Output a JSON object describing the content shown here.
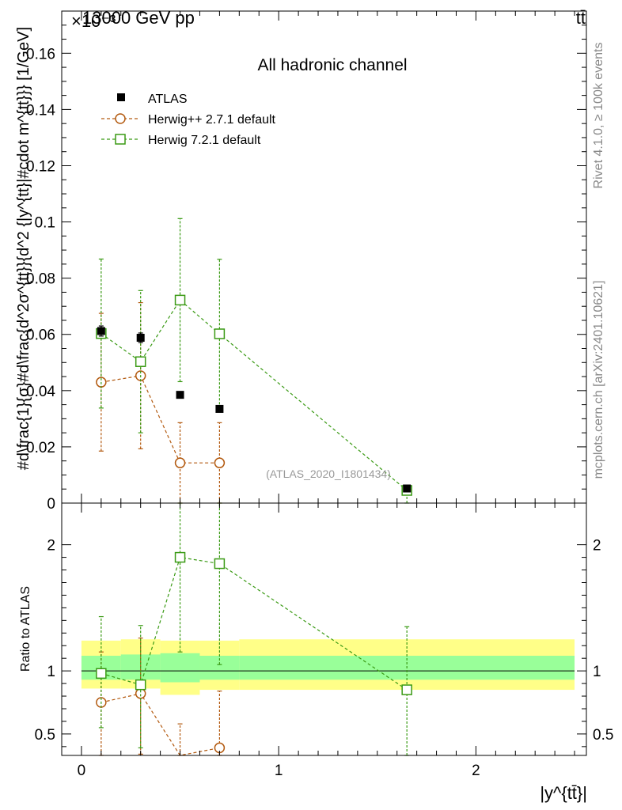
{
  "header": {
    "energy": "13000 GeV pp",
    "process": "tt̄",
    "exponent": "×10⁻³"
  },
  "side_labels": {
    "rivet": "Rivet 4.1.0, ≥ 100k events",
    "source": "mcplots.cern.ch [arXiv:2401.10621]"
  },
  "colors": {
    "herwig2": "#b35a10",
    "herwig7": "#3a9a14",
    "band_outer": "#ffff88",
    "band_inner": "#99ff99"
  },
  "chart_data": [
    {
      "type": "scatter",
      "title": "All hadronic channel",
      "watermark": "(ATLAS_2020_I1801434)",
      "ylabel": "#d\\frac{1}{σ}#d\\frac{d^2σ^{tt}}{d^2 {|y^{tt}|#cdot m^{tt}}} [1/GeV]",
      "xlim": [
        -0.1,
        2.56
      ],
      "ylim": [
        0,
        0.175
      ],
      "y_tick_labels": [
        "0",
        "0.02",
        "0.04",
        "0.06",
        "0.08",
        "0.1",
        "0.12",
        "0.14",
        "0.16"
      ],
      "legend_position": "top-left",
      "series": [
        {
          "name": "ATLAS",
          "marker": "filled-square",
          "x": [
            0.1,
            0.3,
            0.5,
            0.7,
            1.65
          ],
          "y": [
            0.0612,
            0.0588,
            0.0385,
            0.0335,
            0.0052
          ],
          "yerr": [
            0.0018,
            0.0017,
            0.0011,
            0.001,
            0.0003
          ]
        },
        {
          "name": "Herwig++ 2.7.1 default",
          "marker": "open-circle",
          "x": [
            0.1,
            0.3,
            0.5,
            0.7
          ],
          "y": [
            0.043,
            0.0453,
            0.0143,
            0.0143
          ],
          "err_lo": [
            0.0245,
            0.026,
            0.0143,
            0.0143
          ],
          "err_hi": [
            0.0245,
            0.026,
            0.0143,
            0.0143
          ]
        },
        {
          "name": "Herwig 7.2.1 default",
          "marker": "open-square",
          "x": [
            0.1,
            0.3,
            0.5,
            0.7,
            1.65
          ],
          "y": [
            0.0603,
            0.0503,
            0.0722,
            0.0602,
            0.0045
          ],
          "err_lo": [
            0.0265,
            0.0253,
            0.029,
            0.0265,
            0.0045
          ],
          "err_hi": [
            0.0265,
            0.0253,
            0.029,
            0.0265,
            0.0015
          ]
        }
      ]
    },
    {
      "type": "scatter",
      "ylabel": "Ratio to ATLAS",
      "xlabel": "|y^{tt̄}|",
      "xlim": [
        -0.1,
        2.56
      ],
      "ylim": [
        0.33,
        2.33
      ],
      "y_ticks": [
        0.5,
        1,
        2
      ],
      "y_tick_labels": [
        "0.5",
        "1",
        "2"
      ],
      "x_ticks": [
        0,
        1,
        2
      ],
      "x_tick_labels": [
        "0",
        "1",
        "2"
      ],
      "bands": {
        "edges": [
          0,
          0.2,
          0.4,
          0.6,
          0.8,
          2.5
        ],
        "outer": [
          [
            0.86,
            1.24
          ],
          [
            0.86,
            1.25
          ],
          [
            0.81,
            1.24
          ],
          [
            0.85,
            1.24
          ],
          [
            0.85,
            1.25
          ]
        ],
        "inner": [
          [
            0.93,
            1.12
          ],
          [
            0.93,
            1.13
          ],
          [
            0.91,
            1.14
          ],
          [
            0.93,
            1.12
          ],
          [
            0.93,
            1.12
          ]
        ]
      },
      "series": [
        {
          "name": "Herwig++ 2.7.1 default",
          "x": [
            0.1,
            0.3,
            0.5,
            0.7
          ],
          "y": [
            0.75,
            0.82,
            0.29,
            0.39
          ],
          "err_lo": [
            0.44,
            0.48,
            0.29,
            0.39
          ],
          "err_hi": [
            0.4,
            0.44,
            0.29,
            0.45
          ]
        },
        {
          "name": "Herwig 7.2.1 default",
          "x": [
            0.1,
            0.3,
            0.5,
            0.7,
            1.65
          ],
          "y": [
            0.98,
            0.89,
            1.9,
            1.85,
            0.85
          ],
          "err_lo": [
            0.43,
            0.5,
            0.75,
            0.8,
            0.85
          ],
          "err_hi": [
            0.45,
            0.47,
            0.75,
            0.8,
            0.5
          ]
        }
      ]
    }
  ]
}
